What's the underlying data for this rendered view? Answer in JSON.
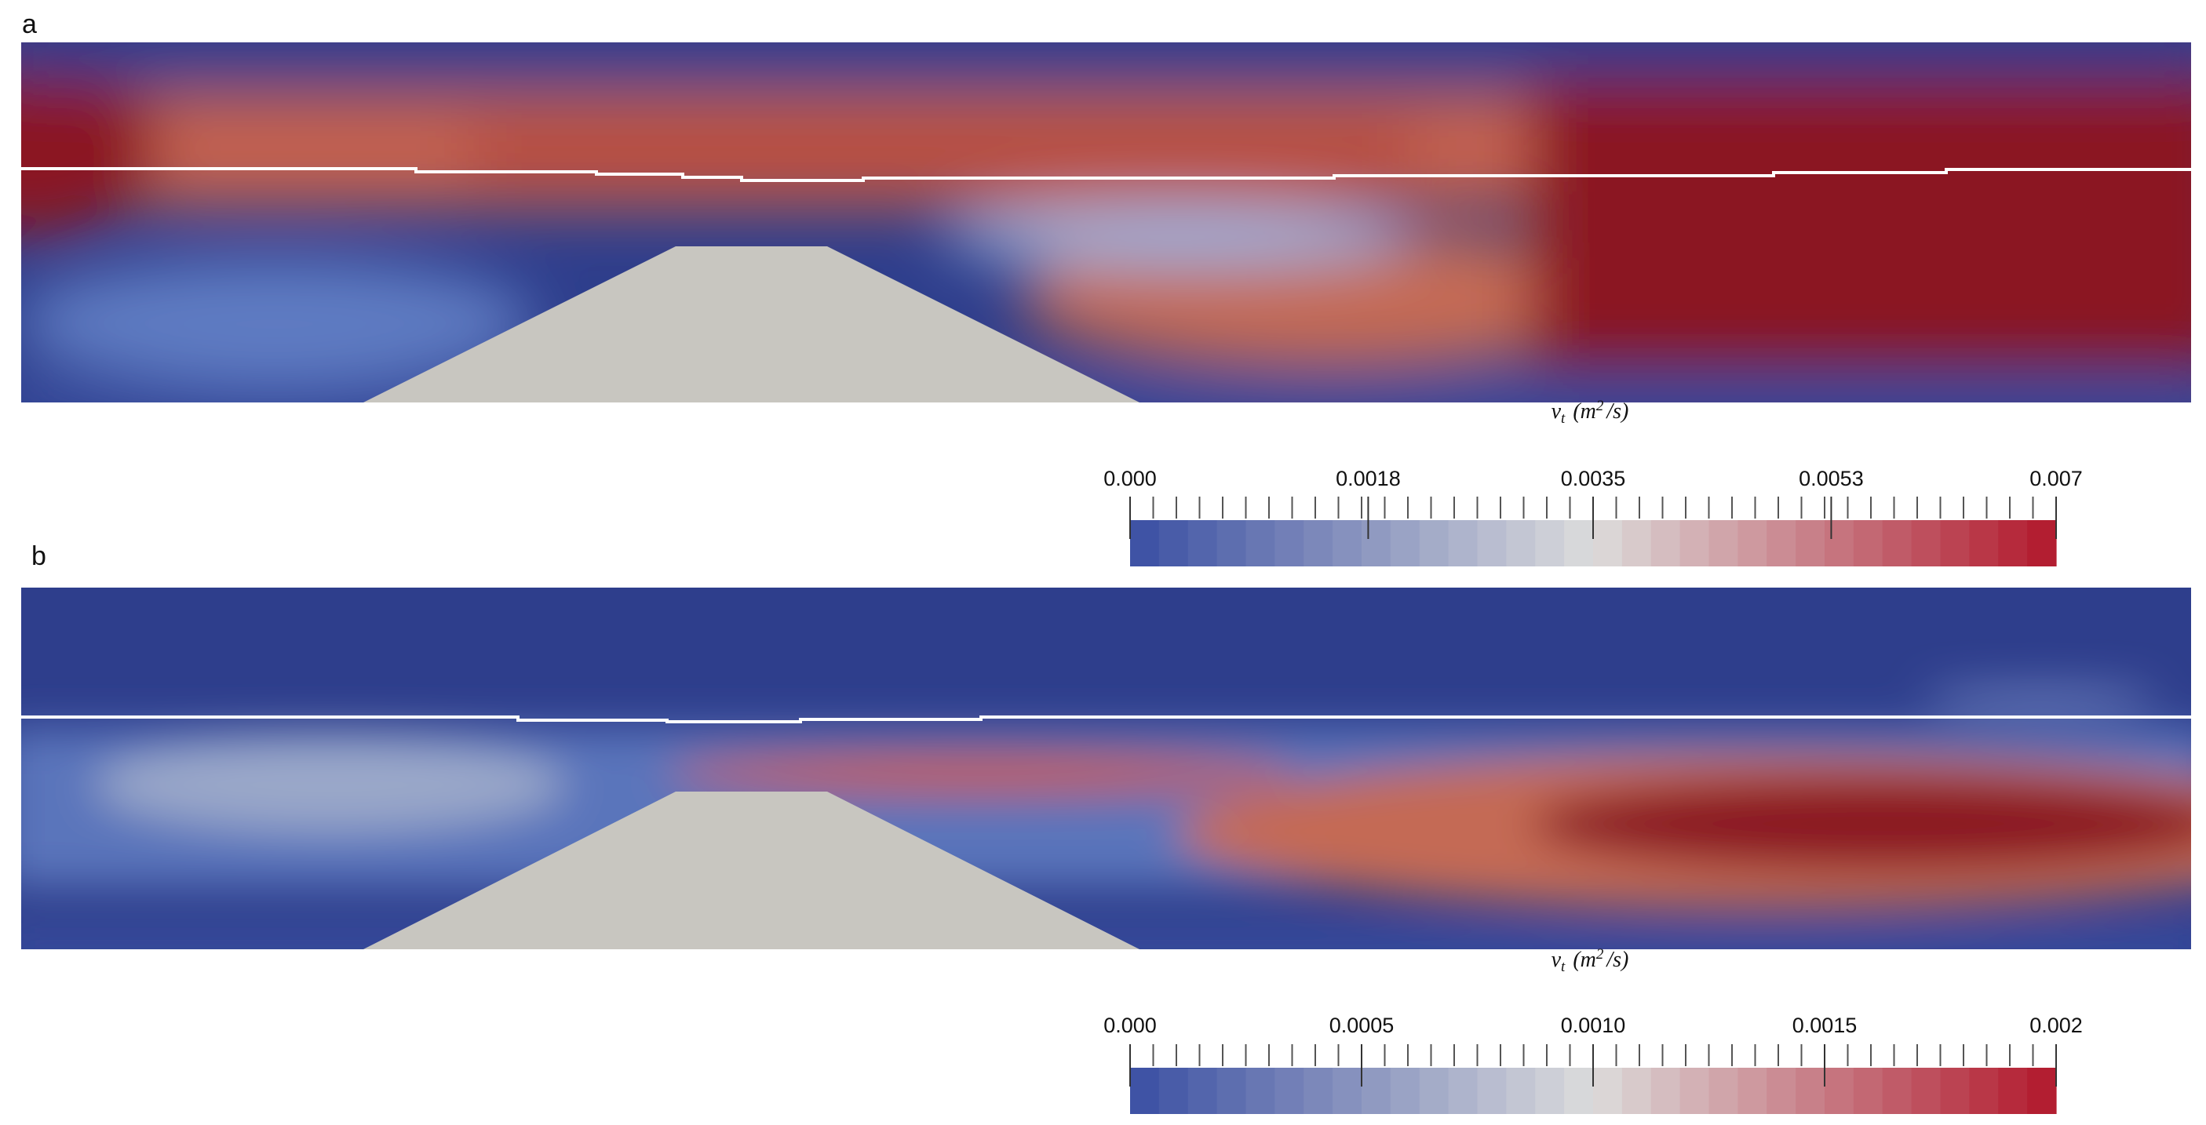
{
  "panels": [
    {
      "label": "a",
      "colorbar": {
        "title": {
          "symbol": "ν",
          "subscript": "t",
          "unit_open": "(m",
          "unit_power": "2",
          "unit_close": "/s)"
        },
        "lim": [
          0,
          0.007
        ],
        "ticks": [
          {
            "value": 0,
            "label": "0.000"
          },
          0.0018,
          0.0035,
          0.0053,
          0.007
        ],
        "colormap": [
          "#3a4fa3",
          "#dcdcdc",
          "#b2182b"
        ]
      }
    },
    {
      "label": "b",
      "colorbar": {
        "title": {
          "symbol": "ν",
          "subscript": "t",
          "unit_open": "(m",
          "unit_power": "2",
          "unit_close": "/s)"
        },
        "lim": [
          0,
          0.002
        ],
        "ticks": [
          {
            "value": 0,
            "label": "0.000"
          },
          0.0005,
          {
            "value": 0.001,
            "label": "0.0010"
          },
          0.0015,
          0.002
        ],
        "colormap": [
          "#3a4fa3",
          "#dcdcdc",
          "#b2182b"
        ]
      }
    }
  ]
}
